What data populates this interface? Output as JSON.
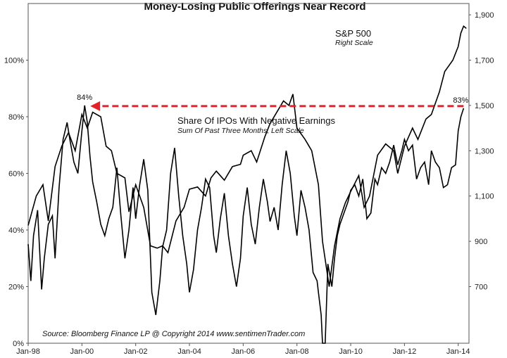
{
  "chart_data": {
    "type": "line",
    "title": "Money-Losing Public Offerings Near Record",
    "source": "Source:  Bloomberg  Finance LP   @ Copyright 2014   www.sentimenTrader.com",
    "x_ticks": [
      "Jan-98",
      "Jan-00",
      "Jan-02",
      "Jan-04",
      "Jan-06",
      "Jan-08",
      "Jan-10",
      "Jan-12",
      "Jan-14"
    ],
    "y_left_ticks": [
      "0%",
      "20%",
      "40%",
      "60%",
      "80%",
      "100%"
    ],
    "y_right_ticks": [
      "700",
      "900",
      "1,100",
      "1,300",
      "1,500",
      "1,700",
      "1,900"
    ],
    "xlim": [
      1998.0,
      2014.4
    ],
    "ylim_left": [
      0,
      120
    ],
    "ylim_right": [
      450,
      1950
    ],
    "series": [
      {
        "name": "S&P 500",
        "sublabel": "Right Scale",
        "axis": "right",
        "x": [
          1998.0,
          1998.3,
          1998.55,
          1998.75,
          1999.0,
          1999.25,
          1999.5,
          1999.75,
          2000.0,
          2000.2,
          2000.4,
          2000.7,
          2000.9,
          2001.1,
          2001.3,
          2001.6,
          2001.75,
          2002.0,
          2002.3,
          2002.55,
          2002.8,
          2003.0,
          2003.2,
          2003.5,
          2003.8,
          2004.0,
          2004.3,
          2004.6,
          2004.8,
          2005.0,
          2005.3,
          2005.6,
          2005.9,
          2006.0,
          2006.3,
          2006.5,
          2006.8,
          2007.0,
          2007.3,
          2007.5,
          2007.7,
          2007.85,
          2008.0,
          2008.3,
          2008.55,
          2008.8,
          2008.95,
          2009.1,
          2009.2,
          2009.4,
          2009.6,
          2009.8,
          2010.0,
          2010.3,
          2010.5,
          2010.7,
          2011.0,
          2011.3,
          2011.6,
          2011.75,
          2012.0,
          2012.3,
          2012.5,
          2012.8,
          2013.0,
          2013.3,
          2013.5,
          2013.8,
          2014.0,
          2014.1,
          2014.2,
          2014.3
        ],
        "values": [
          970,
          1100,
          1150,
          990,
          1230,
          1320,
          1380,
          1300,
          1460,
          1400,
          1470,
          1450,
          1320,
          1300,
          1200,
          1180,
          1030,
          1150,
          1050,
          880,
          870,
          880,
          850,
          990,
          1050,
          1130,
          1140,
          1100,
          1180,
          1210,
          1170,
          1230,
          1240,
          1280,
          1300,
          1250,
          1360,
          1420,
          1480,
          1520,
          1500,
          1550,
          1400,
          1350,
          1300,
          1150,
          900,
          780,
          700,
          880,
          1000,
          1070,
          1120,
          1190,
          1050,
          1100,
          1280,
          1330,
          1300,
          1200,
          1320,
          1400,
          1350,
          1440,
          1460,
          1560,
          1650,
          1700,
          1760,
          1820,
          1850,
          1840
        ]
      },
      {
        "name": "Share Of IPOs With Negative Earnings",
        "sublabel": "Sum Of Past Three Months, Left Scale",
        "axis": "left",
        "x": [
          1998.0,
          1998.1,
          1998.2,
          1998.35,
          1998.5,
          1998.6,
          1998.75,
          1998.9,
          1999.0,
          1999.15,
          1999.3,
          1999.45,
          1999.55,
          1999.7,
          1999.85,
          2000.0,
          2000.1,
          2000.2,
          2000.3,
          2000.4,
          2000.55,
          2000.7,
          2000.85,
          2001.0,
          2001.15,
          2001.3,
          2001.45,
          2001.6,
          2001.75,
          2001.9,
          2002.0,
          2002.15,
          2002.3,
          2002.45,
          2002.6,
          2002.75,
          2002.9,
          2003.0,
          2003.15,
          2003.3,
          2003.45,
          2003.6,
          2003.75,
          2003.9,
          2004.0,
          2004.15,
          2004.3,
          2004.45,
          2004.6,
          2004.75,
          2004.9,
          2005.0,
          2005.15,
          2005.3,
          2005.45,
          2005.6,
          2005.75,
          2005.9,
          2006.0,
          2006.15,
          2006.3,
          2006.45,
          2006.6,
          2006.75,
          2006.9,
          2007.0,
          2007.15,
          2007.3,
          2007.45,
          2007.6,
          2007.75,
          2007.9,
          2008.0,
          2008.15,
          2008.3,
          2008.45,
          2008.6,
          2008.75,
          2008.8,
          2008.9,
          2008.95,
          2009.05,
          2009.15,
          2009.3,
          2009.4,
          2009.5,
          2009.6,
          2009.75,
          2009.9,
          2010.0,
          2010.15,
          2010.3,
          2010.45,
          2010.6,
          2010.75,
          2010.9,
          2011.0,
          2011.15,
          2011.3,
          2011.45,
          2011.6,
          2011.75,
          2011.9,
          2012.0,
          2012.15,
          2012.3,
          2012.45,
          2012.6,
          2012.75,
          2012.9,
          2013.0,
          2013.15,
          2013.3,
          2013.45,
          2013.6,
          2013.75,
          2013.9,
          2014.0,
          2014.1,
          2014.2
        ],
        "values": [
          35,
          22,
          38,
          47,
          19,
          30,
          42,
          45,
          30,
          55,
          72,
          78,
          72,
          64,
          60,
          75,
          84,
          78,
          66,
          57,
          50,
          42,
          38,
          44,
          48,
          62,
          45,
          30,
          40,
          55,
          44,
          56,
          65,
          54,
          18,
          10,
          22,
          34,
          40,
          60,
          69,
          52,
          38,
          28,
          18,
          26,
          40,
          48,
          58,
          55,
          38,
          32,
          44,
          53,
          38,
          28,
          20,
          30,
          45,
          55,
          42,
          35,
          48,
          58,
          50,
          43,
          48,
          40,
          56,
          68,
          60,
          45,
          38,
          54,
          48,
          40,
          25,
          22,
          18,
          10,
          0,
          0,
          28,
          20,
          30,
          38,
          42,
          46,
          50,
          54,
          56,
          52,
          58,
          44,
          46,
          58,
          56,
          62,
          60,
          64,
          70,
          63,
          68,
          72,
          68,
          70,
          58,
          62,
          64,
          56,
          68,
          64,
          62,
          55,
          56,
          62,
          63,
          75,
          80,
          83
        ]
      }
    ],
    "annotations": [
      {
        "text": "84%",
        "x": 2000.1,
        "y": 84
      },
      {
        "text": "83%",
        "x": 2014.2,
        "y": 83
      }
    ],
    "arrow_color": "#e4202a",
    "line_color": "#000000",
    "grid": false
  }
}
